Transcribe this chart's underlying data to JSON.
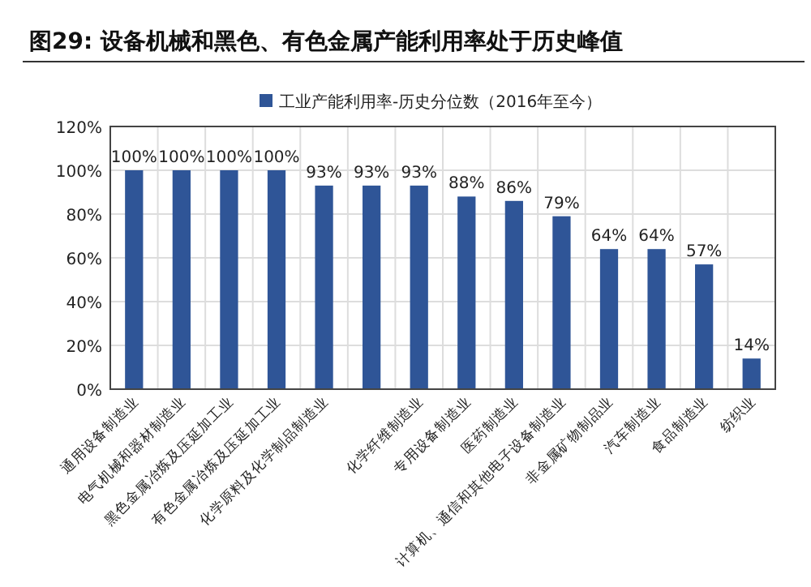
{
  "chart_data": {
    "type": "bar",
    "title": "图29: 设备机械和黑色、有色金属产能利用率处于历史峰值",
    "categories": [
      "通用设备制造业",
      "电气机械和器材制造业",
      "黑色金属冶炼及压延加工业",
      "有色金属冶炼及压延加工业",
      "化学原料及化学制品制造业",
      null,
      "化学纤维制造业",
      "专用设备制造业",
      "医药制造业",
      "计算机、通信和其他电子设备制造业",
      "非金属矿物制品业",
      "汽车制造业",
      "食品制造业",
      "纺织业"
    ],
    "series": [
      {
        "name": "工业产能利用率-历史分位数（2016年至今）",
        "color": "#2f5597",
        "values": [
          100,
          100,
          100,
          100,
          93,
          93,
          93,
          88,
          86,
          79,
          64,
          64,
          57,
          14
        ]
      }
    ],
    "value_labels": [
      "100%",
      "100%",
      "100%",
      "100%",
      "93%",
      "93%",
      "93%",
      "88%",
      "86%",
      "79%",
      "64%",
      "64%",
      "57%",
      "14%"
    ],
    "ylim": [
      0,
      120
    ],
    "yticks": [
      {
        "value": 0,
        "label": "0%"
      },
      {
        "value": 20,
        "label": "20%"
      },
      {
        "value": 40,
        "label": "40%"
      },
      {
        "value": 60,
        "label": "60%"
      },
      {
        "value": 80,
        "label": "80%"
      },
      {
        "value": 100,
        "label": "100%"
      },
      {
        "value": 120,
        "label": "120%"
      }
    ],
    "grid": true,
    "legend": "top"
  }
}
